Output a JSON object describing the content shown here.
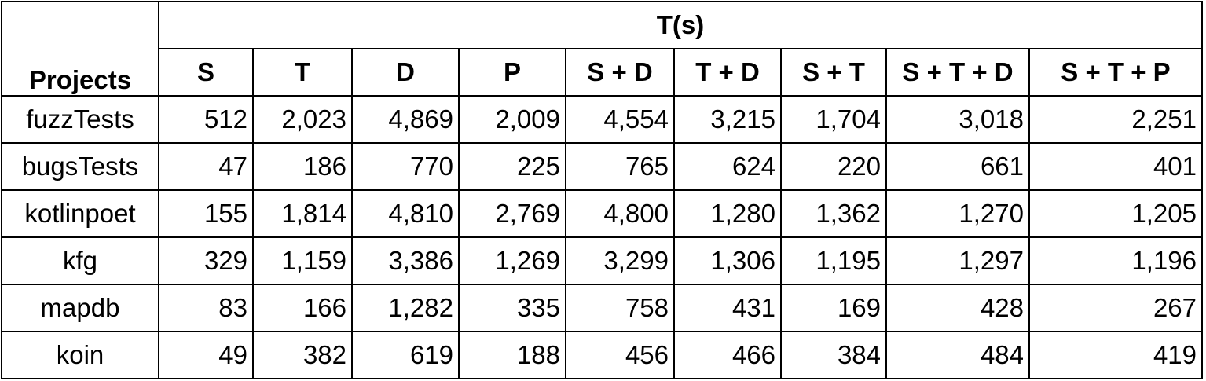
{
  "table": {
    "row_header": "Projects",
    "group_header": "T(s)",
    "columns": [
      "S",
      "T",
      "D",
      "P",
      "S + D",
      "T + D",
      "S + T",
      "S + T + D",
      "S + T + P"
    ],
    "rows": [
      {
        "project": "fuzzTests",
        "values": [
          "512",
          "2,023",
          "4,869",
          "2,009",
          "4,554",
          "3,215",
          "1,704",
          "3,018",
          "2,251"
        ]
      },
      {
        "project": "bugsTests",
        "values": [
          "47",
          "186",
          "770",
          "225",
          "765",
          "624",
          "220",
          "661",
          "401"
        ]
      },
      {
        "project": "kotlinpoet",
        "values": [
          "155",
          "1,814",
          "4,810",
          "2,769",
          "4,800",
          "1,280",
          "1,362",
          "1,270",
          "1,205"
        ]
      },
      {
        "project": "kfg",
        "values": [
          "329",
          "1,159",
          "3,386",
          "1,269",
          "3,299",
          "1,306",
          "1,195",
          "1,297",
          "1,196"
        ]
      },
      {
        "project": "mapdb",
        "values": [
          "83",
          "166",
          "1,282",
          "335",
          "758",
          "431",
          "169",
          "428",
          "267"
        ]
      },
      {
        "project": "koin",
        "values": [
          "49",
          "382",
          "619",
          "188",
          "456",
          "466",
          "384",
          "484",
          "419"
        ]
      }
    ]
  }
}
